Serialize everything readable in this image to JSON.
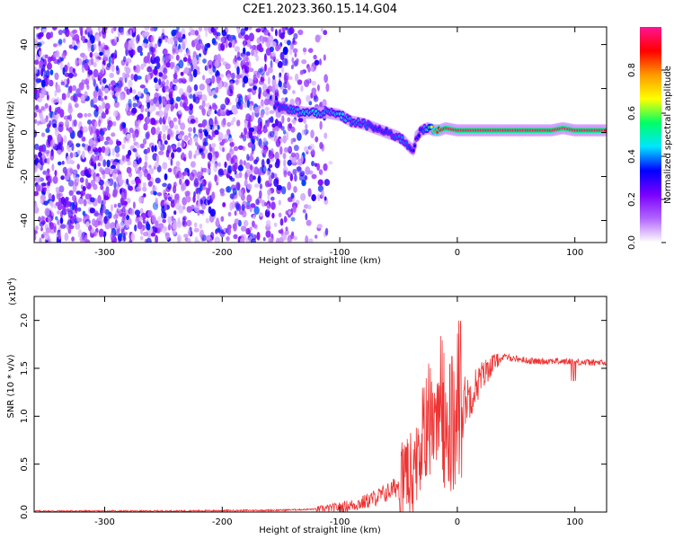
{
  "title": "C2E1.2023.360.15.14.G04",
  "chart_data": [
    {
      "type": "heatmap",
      "xlabel": "Height of straight line (km)",
      "ylabel": "Frequency (Hz)",
      "xlim": [
        -360,
        127
      ],
      "ylim": [
        -50,
        48
      ],
      "xticks": [
        -300,
        -200,
        -100,
        0,
        100
      ],
      "yticks": [
        -40,
        -20,
        0,
        20,
        40
      ],
      "colorbar": {
        "label": "Normalized spectral amplitude",
        "range": [
          0,
          1
        ],
        "ticks": [
          "0.0",
          "0.2",
          "0.4",
          "0.6",
          "0.8"
        ],
        "stops": [
          "#ffffff",
          "#b266ff",
          "#7a00ff",
          "#0000ff",
          "#00e5ff",
          "#00ff66",
          "#ffff00",
          "#ff9900",
          "#ff0000",
          "#ff1493"
        ]
      },
      "noise_region_x": [
        -360,
        -105
      ],
      "signal_trace": {
        "x": [
          -155,
          -140,
          -130,
          -120,
          -110,
          -100,
          -90,
          -80,
          -70,
          -60,
          -50,
          -45,
          -40,
          -37,
          -35,
          -30,
          -25,
          -20,
          -15,
          -10,
          0,
          20,
          40,
          60,
          80,
          90,
          100,
          110,
          127
        ],
        "y": [
          12,
          10,
          9,
          9,
          9,
          8,
          5,
          4,
          2,
          0,
          -2,
          -4,
          -7,
          -8,
          -2,
          1,
          2,
          1,
          1,
          2,
          1,
          1,
          1,
          1,
          1,
          2,
          1,
          1,
          1
        ],
        "amplitude": [
          0.35,
          0.4,
          0.45,
          0.45,
          0.4,
          0.45,
          0.4,
          0.4,
          0.35,
          0.35,
          0.4,
          0.4,
          0.35,
          0.3,
          0.3,
          0.35,
          0.5,
          0.8,
          0.9,
          0.95,
          0.95,
          0.95,
          0.95,
          0.95,
          0.95,
          0.98,
          0.95,
          0.95,
          0.95
        ]
      }
    },
    {
      "type": "line",
      "xlabel": "Height of straight line (km)",
      "ylabel": "SNR (10 * v/v)",
      "y_multiplier": "(x10",
      "y_multiplier_exp": "4",
      "y_multiplier_close": ")",
      "xlim": [
        -360,
        127
      ],
      "ylim": [
        0,
        2.25
      ],
      "xticks": [
        -300,
        -200,
        -100,
        0,
        100
      ],
      "yticks": [
        "0.0",
        "0.5",
        "1.0",
        "1.5",
        "2.0"
      ],
      "color": "#ee3333",
      "series": [
        {
          "x": [
            -360,
            -250,
            -150,
            -120,
            -100,
            -90,
            -80,
            -70,
            -60,
            -50,
            -40,
            -35,
            -30,
            -25,
            -20,
            -18,
            -15,
            -10,
            -5,
            0,
            10,
            20,
            30,
            40,
            50,
            60,
            70,
            80,
            90,
            100,
            110,
            120,
            127
          ],
          "values": [
            0.01,
            0.01,
            0.02,
            0.03,
            0.05,
            0.07,
            0.1,
            0.15,
            0.2,
            0.28,
            0.35,
            0.5,
            0.7,
            0.9,
            1.0,
            1.15,
            1.1,
            1.0,
            1.05,
            1.1,
            1.2,
            1.4,
            1.55,
            1.62,
            1.6,
            1.58,
            1.57,
            1.58,
            1.57,
            1.57,
            1.56,
            1.56,
            1.55
          ]
        }
      ]
    }
  ]
}
